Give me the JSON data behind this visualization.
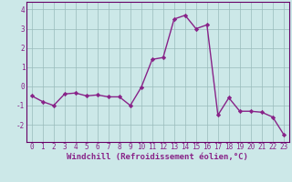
{
  "xlabel": "Windchill (Refroidissement éolien,°C)",
  "x": [
    0,
    1,
    2,
    3,
    4,
    5,
    6,
    7,
    8,
    9,
    10,
    11,
    12,
    13,
    14,
    15,
    16,
    17,
    18,
    19,
    20,
    21,
    22,
    23
  ],
  "y": [
    -0.5,
    -0.8,
    -1.0,
    -0.4,
    -0.35,
    -0.5,
    -0.45,
    -0.55,
    -0.55,
    -1.0,
    -0.05,
    1.4,
    1.5,
    3.5,
    3.7,
    3.0,
    3.2,
    -1.5,
    -0.6,
    -1.3,
    -1.3,
    -1.35,
    -1.6,
    -2.5
  ],
  "line_color": "#882288",
  "marker": "D",
  "marker_size": 2.2,
  "linewidth": 1.0,
  "bg_color": "#cce8e8",
  "grid_color": "#99bbbb",
  "yticks": [
    -2,
    -1,
    0,
    1,
    2,
    3,
    4
  ],
  "ylim": [
    -2.9,
    4.4
  ],
  "xlim": [
    -0.5,
    23.5
  ],
  "xticks": [
    0,
    1,
    2,
    3,
    4,
    5,
    6,
    7,
    8,
    9,
    10,
    11,
    12,
    13,
    14,
    15,
    16,
    17,
    18,
    19,
    20,
    21,
    22,
    23
  ],
  "tick_fontsize": 5.5,
  "xlabel_fontsize": 6.5,
  "spine_color": "#660066"
}
